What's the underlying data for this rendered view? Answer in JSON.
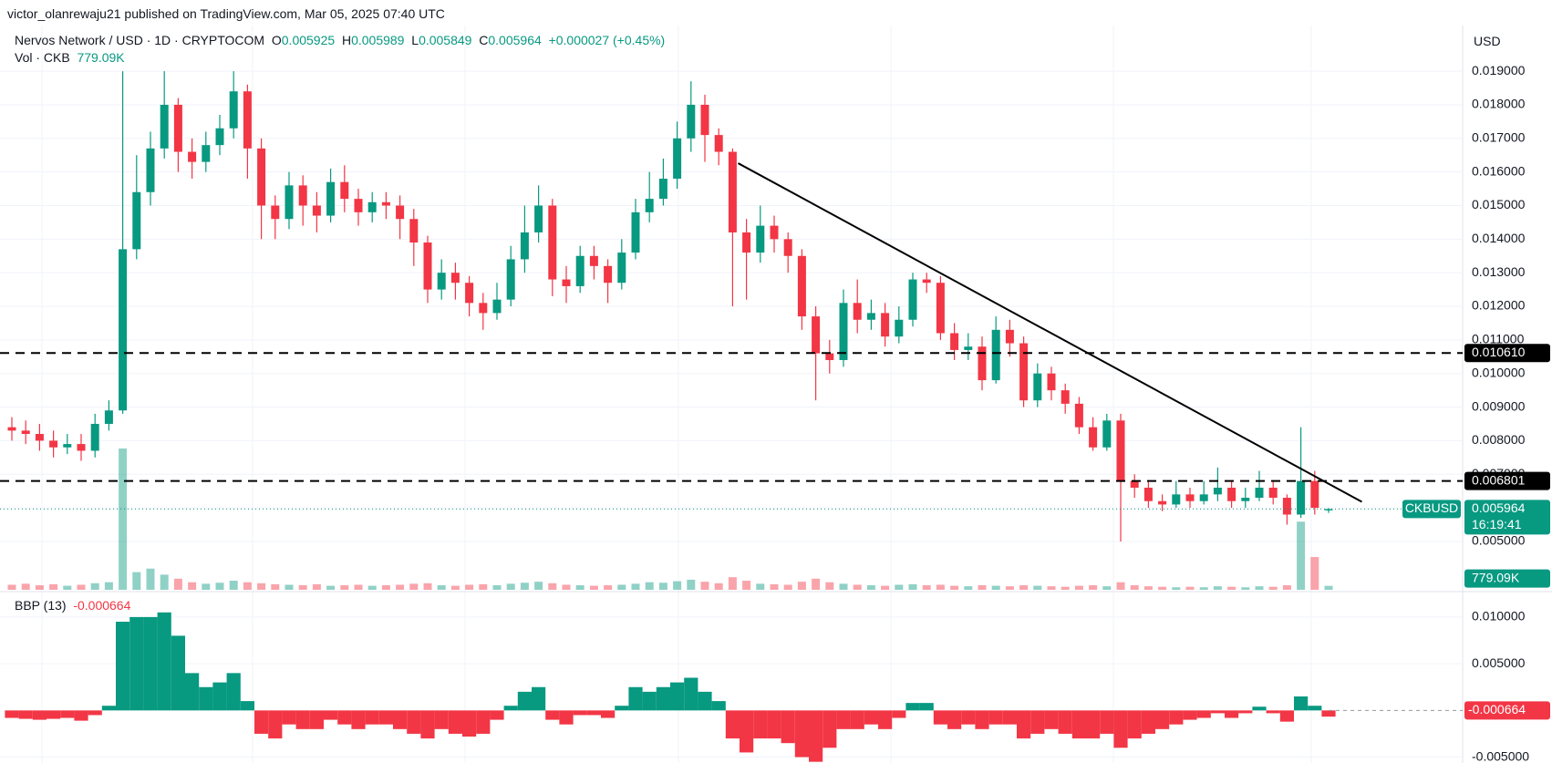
{
  "header": {
    "publisher": "victor_olanrewaju21 published on TradingView.com, Mar 05, 2025 07:40 UTC",
    "symbol": "Nervos Network / USD · 1D · CRYPTOCOM",
    "o": "O",
    "h": "H",
    "l": "L",
    "c": "C",
    "change": "+0.000027 (+0.45%)",
    "volume_title": "Vol · CKB"
  },
  "currency": "USD",
  "chart_data": [
    {
      "type": "candlestick",
      "ticker": "CKBUSD",
      "countdown": "16:19:41",
      "colors": {
        "up": "#089981",
        "down": "#f23645"
      },
      "open": [
        0.0084,
        0.0083,
        0.0082,
        0.008,
        0.0078,
        0.0079,
        0.0077,
        0.0085,
        0.0089,
        0.0137,
        0.0154,
        0.0167,
        0.018,
        0.0166,
        0.0163,
        0.0168,
        0.0173,
        0.0184,
        0.0167,
        0.015,
        0.0146,
        0.0156,
        0.015,
        0.0147,
        0.0157,
        0.0152,
        0.0148,
        0.0151,
        0.015,
        0.0146,
        0.0139,
        0.0125,
        0.013,
        0.0127,
        0.0121,
        0.0118,
        0.0122,
        0.0134,
        0.0142,
        0.015,
        0.0128,
        0.0126,
        0.0135,
        0.0132,
        0.0127,
        0.0136,
        0.0148,
        0.0152,
        0.0158,
        0.017,
        0.018,
        0.0171,
        0.0166,
        0.0142,
        0.0136,
        0.0144,
        0.014,
        0.0135,
        0.0117,
        0.0106,
        0.0104,
        0.0121,
        0.0116,
        0.0118,
        0.0111,
        0.0116,
        0.0128,
        0.0127,
        0.0112,
        0.0107,
        0.0108,
        0.0098,
        0.0113,
        0.0109,
        0.0092,
        0.01,
        0.0095,
        0.0091,
        0.0084,
        0.0078,
        0.0086,
        0.0068,
        0.0066,
        0.0062,
        0.0061,
        0.0064,
        0.0062,
        0.0064,
        0.0066,
        0.0062,
        0.0063,
        0.0066,
        0.0063,
        0.0058,
        0.0068,
        0.005925
      ],
      "high": [
        0.0087,
        0.0086,
        0.0085,
        0.0083,
        0.0082,
        0.0082,
        0.0088,
        0.0092,
        0.019,
        0.0165,
        0.0172,
        0.019,
        0.0182,
        0.017,
        0.0172,
        0.0177,
        0.019,
        0.0186,
        0.017,
        0.0153,
        0.016,
        0.0159,
        0.0154,
        0.0161,
        0.0162,
        0.0155,
        0.0154,
        0.0154,
        0.0153,
        0.0149,
        0.0141,
        0.0134,
        0.0133,
        0.0129,
        0.0124,
        0.0127,
        0.0138,
        0.015,
        0.0156,
        0.0152,
        0.0132,
        0.0138,
        0.0138,
        0.0134,
        0.014,
        0.0152,
        0.016,
        0.0164,
        0.0175,
        0.0187,
        0.0183,
        0.0173,
        0.0167,
        0.0146,
        0.015,
        0.0147,
        0.0142,
        0.0137,
        0.012,
        0.011,
        0.0125,
        0.0128,
        0.0122,
        0.0121,
        0.012,
        0.013,
        0.013,
        0.0129,
        0.0115,
        0.0112,
        0.0111,
        0.0117,
        0.0116,
        0.0111,
        0.0103,
        0.0102,
        0.0097,
        0.0093,
        0.0087,
        0.0088,
        0.0088,
        0.007,
        0.0068,
        0.0064,
        0.0068,
        0.0066,
        0.0068,
        0.0072,
        0.0068,
        0.0066,
        0.0071,
        0.0068,
        0.0064,
        0.0084,
        0.0071,
        0.005989
      ],
      "low": [
        0.008,
        0.0079,
        0.0077,
        0.0075,
        0.0076,
        0.0074,
        0.0075,
        0.0083,
        0.0088,
        0.0134,
        0.015,
        0.0164,
        0.016,
        0.0158,
        0.016,
        0.0165,
        0.017,
        0.0158,
        0.014,
        0.014,
        0.0143,
        0.0144,
        0.0142,
        0.0145,
        0.0148,
        0.0144,
        0.0145,
        0.0146,
        0.014,
        0.0132,
        0.0121,
        0.0122,
        0.0122,
        0.0117,
        0.0113,
        0.0116,
        0.012,
        0.013,
        0.0139,
        0.0123,
        0.0121,
        0.0124,
        0.0128,
        0.0121,
        0.0125,
        0.0134,
        0.0145,
        0.015,
        0.0155,
        0.0166,
        0.0163,
        0.0162,
        0.012,
        0.0122,
        0.0133,
        0.0136,
        0.013,
        0.0113,
        0.0092,
        0.01,
        0.0102,
        0.0112,
        0.0113,
        0.0108,
        0.0109,
        0.0114,
        0.0124,
        0.011,
        0.0104,
        0.0104,
        0.0095,
        0.0097,
        0.0105,
        0.009,
        0.009,
        0.0092,
        0.0088,
        0.0082,
        0.0077,
        0.0077,
        0.005,
        0.0063,
        0.006,
        0.0059,
        0.006,
        0.006,
        0.0061,
        0.0062,
        0.006,
        0.006,
        0.0062,
        0.0061,
        0.0055,
        0.0057,
        0.0058,
        0.005849
      ],
      "close": [
        0.0083,
        0.0082,
        0.008,
        0.0078,
        0.0079,
        0.0077,
        0.0085,
        0.0089,
        0.0137,
        0.0154,
        0.0167,
        0.018,
        0.0166,
        0.0163,
        0.0168,
        0.0173,
        0.0184,
        0.0167,
        0.015,
        0.0146,
        0.0156,
        0.015,
        0.0147,
        0.0157,
        0.0152,
        0.0148,
        0.0151,
        0.015,
        0.0146,
        0.0139,
        0.0125,
        0.013,
        0.0127,
        0.0121,
        0.0118,
        0.0122,
        0.0134,
        0.0142,
        0.015,
        0.0128,
        0.0126,
        0.0135,
        0.0132,
        0.0127,
        0.0136,
        0.0148,
        0.0152,
        0.0158,
        0.017,
        0.018,
        0.0171,
        0.0166,
        0.0142,
        0.0136,
        0.0144,
        0.014,
        0.0135,
        0.0117,
        0.0106,
        0.0104,
        0.0121,
        0.0116,
        0.0118,
        0.0111,
        0.0116,
        0.0128,
        0.0127,
        0.0112,
        0.0107,
        0.0108,
        0.0098,
        0.0113,
        0.0109,
        0.0092,
        0.01,
        0.0095,
        0.0091,
        0.0084,
        0.0078,
        0.0086,
        0.0068,
        0.0066,
        0.0062,
        0.0061,
        0.0064,
        0.0062,
        0.0064,
        0.0066,
        0.0062,
        0.0063,
        0.0066,
        0.0063,
        0.0058,
        0.0068,
        0.006,
        0.005964
      ],
      "volume": [
        1000,
        1200,
        900,
        1100,
        800,
        1000,
        1300,
        1500,
        28000,
        3500,
        4200,
        3000,
        2200,
        1500,
        1200,
        1400,
        1800,
        1500,
        1300,
        1100,
        1000,
        900,
        1100,
        800,
        900,
        1000,
        800,
        900,
        1000,
        1200,
        1300,
        900,
        800,
        1000,
        1100,
        900,
        1200,
        1400,
        1600,
        1300,
        1000,
        900,
        800,
        900,
        1000,
        1200,
        1500,
        1400,
        1700,
        2000,
        1600,
        1300,
        2500,
        1800,
        1200,
        1100,
        1000,
        1600,
        2200,
        1500,
        1200,
        1000,
        900,
        800,
        1000,
        1100,
        900,
        1000,
        800,
        700,
        900,
        800,
        700,
        900,
        800,
        700,
        600,
        800,
        900,
        700,
        1500,
        900,
        700,
        600,
        500,
        600,
        500,
        700,
        600,
        500,
        700,
        600,
        900,
        13500,
        6500,
        779.09
      ],
      "last_volume_label": "779.09K",
      "levels": [
        {
          "value": 0.01061,
          "label": "0.010610"
        },
        {
          "value": 0.006801,
          "label": "0.006801"
        }
      ],
      "trendline": {
        "x": [
          52.4,
          97.4
        ],
        "y": [
          0.01626,
          0.00618
        ]
      },
      "ylim": [
        0.00356,
        0.02036
      ],
      "yticks": [
        {
          "value": 0.019,
          "label": "0.019000"
        },
        {
          "value": 0.018,
          "label": "0.018000"
        },
        {
          "value": 0.017,
          "label": "0.017000"
        },
        {
          "value": 0.016,
          "label": "0.016000"
        },
        {
          "value": 0.015,
          "label": "0.015000"
        },
        {
          "value": 0.014,
          "label": "0.014000"
        },
        {
          "value": 0.013,
          "label": "0.013000"
        },
        {
          "value": 0.012,
          "label": "0.012000"
        },
        {
          "value": 0.011,
          "label": "0.011000"
        },
        {
          "value": 0.01,
          "label": "0.010000"
        },
        {
          "value": 0.009,
          "label": "0.009000"
        },
        {
          "value": 0.008,
          "label": "0.008000"
        },
        {
          "value": 0.007,
          "label": "0.007000"
        },
        {
          "value": 0.006,
          "label": "0.006000"
        },
        {
          "value": 0.005,
          "label": "0.005000"
        }
      ],
      "grid": true
    },
    {
      "type": "bar",
      "title": "BBP (13)",
      "colors": {
        "up": "#089981",
        "down": "#f23645"
      },
      "values": [
        -0.0008,
        -0.0009,
        -0.001,
        -0.0009,
        -0.0008,
        -0.0011,
        -0.0005,
        0.0005,
        0.0095,
        0.01,
        0.01,
        0.0105,
        0.008,
        0.004,
        0.0025,
        0.003,
        0.004,
        0.001,
        -0.0025,
        -0.003,
        -0.0015,
        -0.002,
        -0.002,
        -0.001,
        -0.0015,
        -0.002,
        -0.0015,
        -0.0015,
        -0.002,
        -0.0025,
        -0.003,
        -0.002,
        -0.0025,
        -0.0028,
        -0.0025,
        -0.001,
        0.0005,
        0.002,
        0.0025,
        -0.001,
        -0.0015,
        -0.0005,
        -0.0005,
        -0.0008,
        0.0005,
        0.0025,
        0.002,
        0.0025,
        0.003,
        0.0035,
        0.002,
        0.001,
        -0.003,
        -0.0045,
        -0.003,
        -0.003,
        -0.0035,
        -0.005,
        -0.0055,
        -0.004,
        -0.002,
        -0.002,
        -0.0015,
        -0.002,
        -0.0008,
        0.0008,
        0.0008,
        -0.0015,
        -0.002,
        -0.0015,
        -0.002,
        -0.0015,
        -0.0015,
        -0.003,
        -0.0025,
        -0.002,
        -0.0025,
        -0.003,
        -0.003,
        -0.0025,
        -0.004,
        -0.003,
        -0.0025,
        -0.002,
        -0.0015,
        -0.001,
        -0.0008,
        -0.0003,
        -0.0008,
        -0.0003,
        0.0004,
        -0.0003,
        -0.0012,
        0.0015,
        0.0005,
        -0.000664
      ],
      "ylim": [
        -0.00563,
        0.01253
      ],
      "yticks": [
        {
          "value": 0.01,
          "label": "0.010000"
        },
        {
          "value": 0.005,
          "label": "0.005000"
        },
        {
          "value": -0.005,
          "label": "-0.005000"
        }
      ],
      "grid": true
    }
  ]
}
